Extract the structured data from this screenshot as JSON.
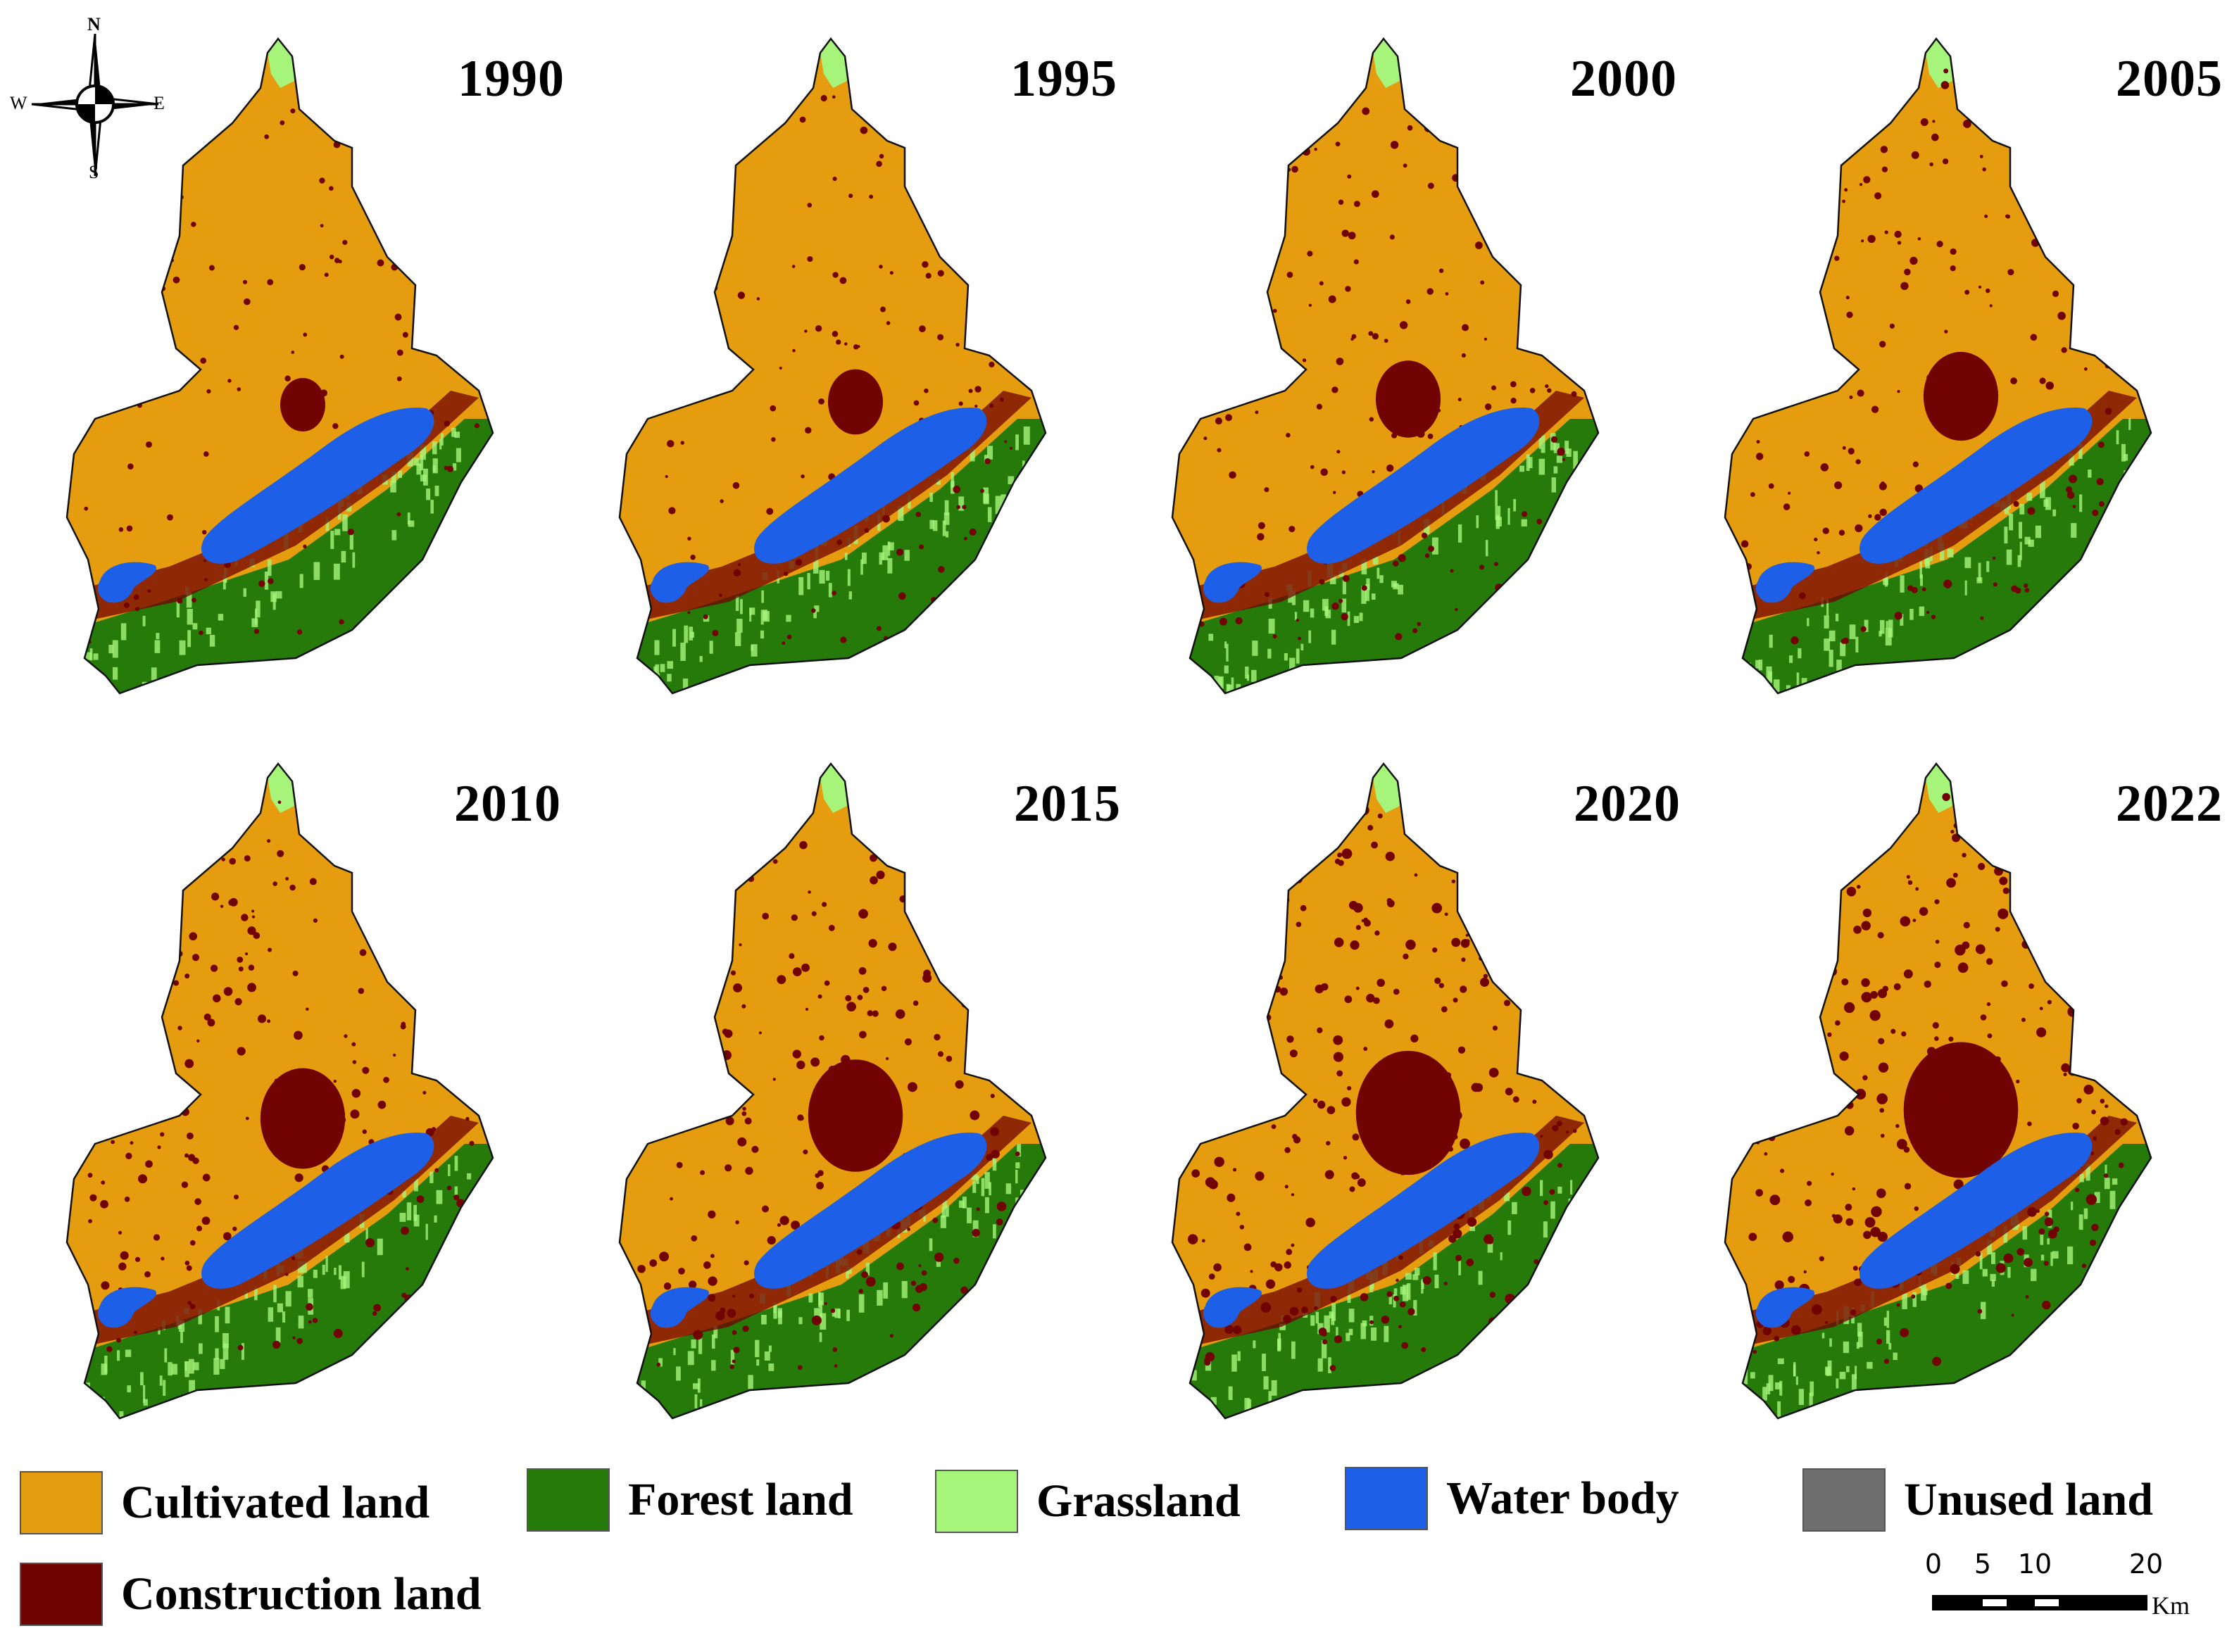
{
  "compass": {
    "north": "N",
    "south": "S",
    "east": "E",
    "west": "W"
  },
  "panels": [
    {
      "year": "1990"
    },
    {
      "year": "1995"
    },
    {
      "year": "2000"
    },
    {
      "year": "2005"
    },
    {
      "year": "2010"
    },
    {
      "year": "2015"
    },
    {
      "year": "2020"
    },
    {
      "year": "2022"
    }
  ],
  "legend": [
    {
      "label": "Cultivated land",
      "color": "#e59c0e"
    },
    {
      "label": "Forest land",
      "color": "#267a0a"
    },
    {
      "label": "Grassland",
      "color": "#a6f57a"
    },
    {
      "label": "Water body",
      "color": "#1d5fe6"
    },
    {
      "label": "Unused land",
      "color": "#6e6e6e"
    },
    {
      "label": "Construction land",
      "color": "#720303"
    }
  ],
  "scale_bar": {
    "ticks": [
      "0",
      "5",
      "10",
      "20"
    ],
    "unit": "Km"
  }
}
